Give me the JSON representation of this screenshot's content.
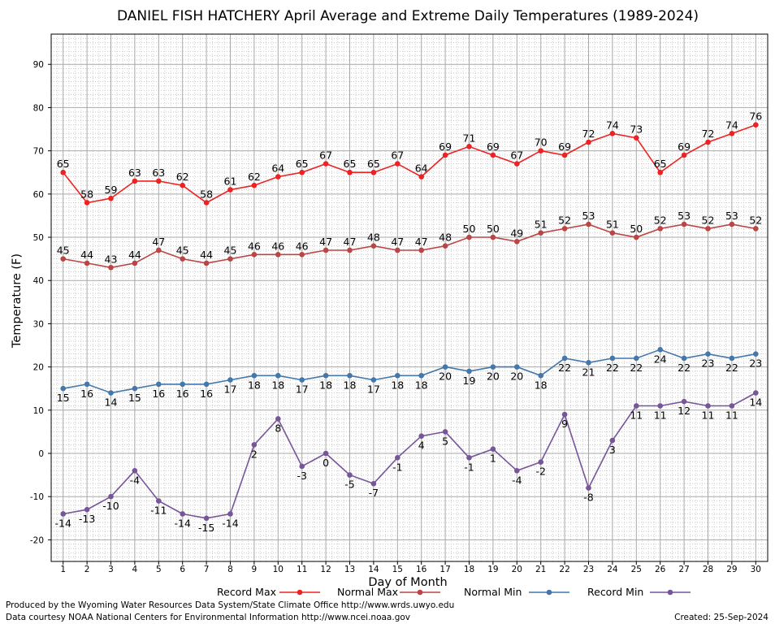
{
  "chart_data": {
    "type": "line",
    "title": "DANIEL FISH HATCHERY April Average and Extreme Daily Temperatures (1989-2024)",
    "xlabel": "Day of Month",
    "ylabel": "Temperature (F)",
    "xlim": [
      0.5,
      30.5
    ],
    "ylim": [
      -25,
      97
    ],
    "yticks": [
      -20,
      -10,
      0,
      10,
      20,
      30,
      40,
      50,
      60,
      70,
      80,
      90
    ],
    "grid": true,
    "legend_position": "bottom",
    "x": [
      1,
      2,
      3,
      4,
      5,
      6,
      7,
      8,
      9,
      10,
      11,
      12,
      13,
      14,
      15,
      16,
      17,
      18,
      19,
      20,
      21,
      22,
      23,
      24,
      25,
      26,
      27,
      28,
      29,
      30
    ],
    "series": [
      {
        "name": "Record Max",
        "color": "#ee2222",
        "label_position": "above",
        "values": [
          65,
          58,
          59,
          63,
          63,
          62,
          58,
          61,
          62,
          64,
          65,
          67,
          65,
          65,
          67,
          64,
          69,
          71,
          69,
          67,
          70,
          69,
          72,
          74,
          73,
          65,
          69,
          72,
          74,
          76
        ]
      },
      {
        "name": "Normal Max",
        "color": "#bb4444",
        "label_position": "above",
        "values": [
          45,
          44,
          43,
          44,
          47,
          45,
          44,
          45,
          46,
          46,
          46,
          47,
          47,
          48,
          47,
          47,
          48,
          50,
          50,
          49,
          51,
          52,
          53,
          51,
          50,
          52,
          53,
          52,
          53,
          52
        ]
      },
      {
        "name": "Normal Min",
        "color": "#4477aa",
        "label_position": "below",
        "values": [
          15,
          16,
          14,
          15,
          16,
          16,
          16,
          17,
          18,
          18,
          17,
          18,
          18,
          17,
          18,
          18,
          20,
          19,
          20,
          20,
          18,
          22,
          21,
          22,
          22,
          24,
          22,
          23,
          22,
          23
        ]
      },
      {
        "name": "Record Min",
        "color": "#775599",
        "label_position": "below",
        "values": [
          -14,
          -13,
          -10,
          -4,
          -11,
          -14,
          -15,
          -14,
          2,
          8,
          -3,
          0,
          -5,
          -7,
          -1,
          4,
          5,
          -1,
          1,
          -4,
          -2,
          9,
          -8,
          3,
          11,
          11,
          12,
          11,
          11,
          14
        ]
      }
    ]
  },
  "footer": {
    "line1": "Produced by the Wyoming Water Resources Data System/State Climate Office http://www.wrds.uwyo.edu",
    "line2": "Data courtesy NOAA National Centers for Environmental Information http://www.ncei.noaa.gov",
    "created": "Created:  25-Sep-2024"
  }
}
